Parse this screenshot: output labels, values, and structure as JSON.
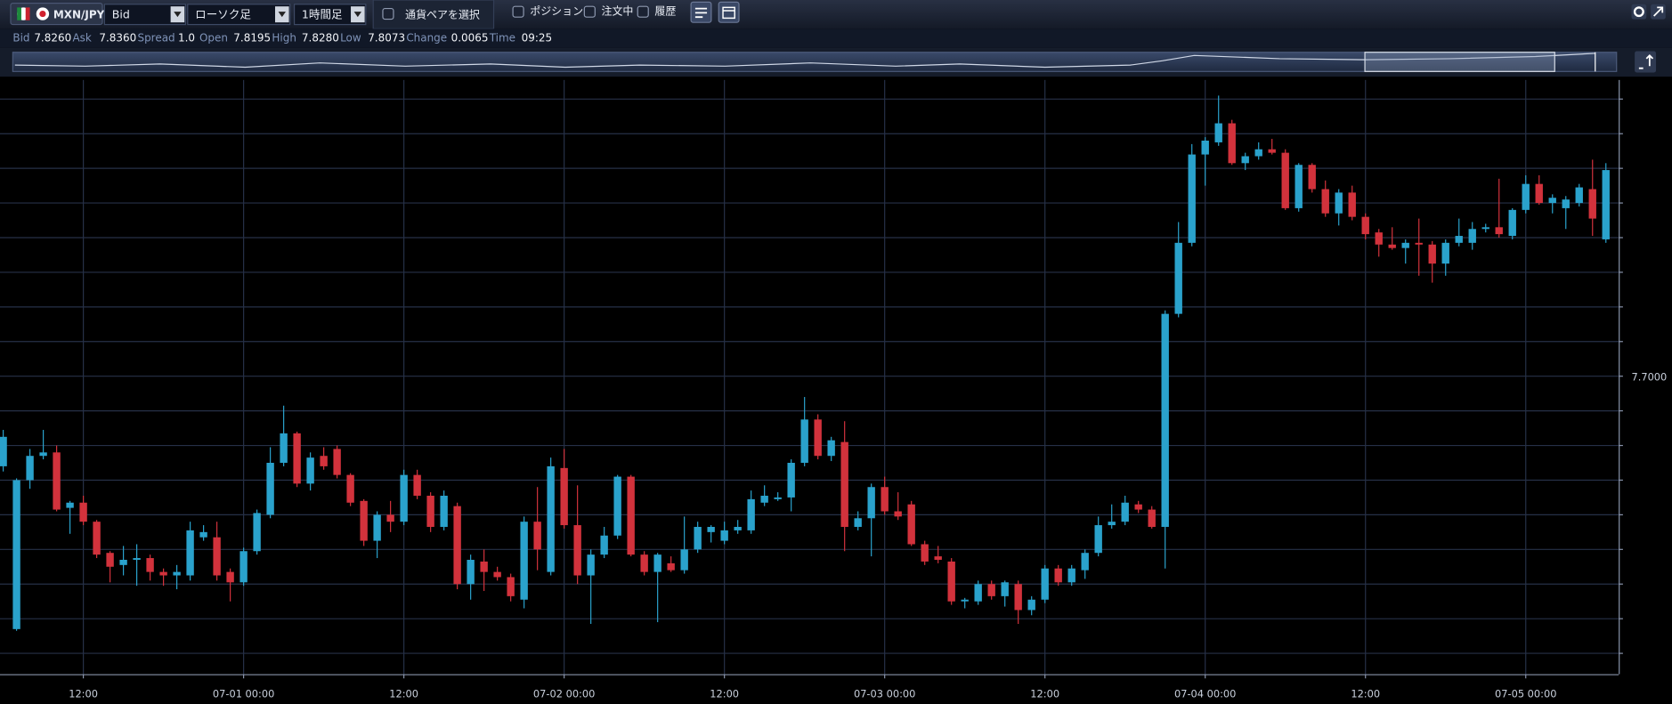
{
  "toolbar": {
    "pair": "MXN/JPY",
    "price_type": "Bid",
    "chart_type": "ローソク足",
    "period": "1時間足",
    "select_pair": "通貨ペアを選択",
    "positions": "ポジション",
    "orders": "注文中",
    "history": "履歴"
  },
  "quote": [
    {
      "label": "Bid",
      "value": "7.8260"
    },
    {
      "label": "Ask",
      "value": "7.8360"
    },
    {
      "label": "Spread",
      "value": "1.0"
    },
    {
      "label": "Open",
      "value": "7.8195"
    },
    {
      "label": "High",
      "value": "7.8280"
    },
    {
      "label": "Low",
      "value": "7.8073"
    },
    {
      "label": "Change",
      "value": "0.0065"
    },
    {
      "label": "Time",
      "value": "09:25"
    }
  ],
  "chart_data": {
    "type": "candlestick",
    "up_color": "#2aa2cc",
    "down_color": "#d2323c",
    "grid": true,
    "grid_color": "#263047",
    "ylim": [
      7.528,
      7.871
    ],
    "yticks": [
      {
        "value": 7.54,
        "label": null
      },
      {
        "value": 7.56,
        "label": null
      },
      {
        "value": 7.58,
        "label": null
      },
      {
        "value": 7.6,
        "label": null
      },
      {
        "value": 7.62,
        "label": null
      },
      {
        "value": 7.64,
        "label": null
      },
      {
        "value": 7.66,
        "label": null
      },
      {
        "value": 7.68,
        "label": null
      },
      {
        "value": 7.7,
        "label": "7.7000"
      },
      {
        "value": 7.72,
        "label": null
      },
      {
        "value": 7.74,
        "label": null
      },
      {
        "value": 7.76,
        "label": null
      },
      {
        "value": 7.78,
        "label": null
      },
      {
        "value": 7.8,
        "label": null
      },
      {
        "value": 7.82,
        "label": null
      },
      {
        "value": 7.84,
        "label": null
      },
      {
        "value": 7.86,
        "label": null
      }
    ],
    "x": [
      null,
      null,
      null,
      null,
      null,
      null,
      "12:00",
      null,
      null,
      null,
      null,
      null,
      null,
      null,
      null,
      null,
      null,
      null,
      "07-01 00:00",
      null,
      null,
      null,
      null,
      null,
      null,
      null,
      null,
      null,
      null,
      null,
      "12:00",
      null,
      null,
      null,
      null,
      null,
      null,
      null,
      null,
      null,
      null,
      null,
      "07-02 00:00",
      null,
      null,
      null,
      null,
      null,
      null,
      null,
      null,
      null,
      null,
      null,
      "12:00",
      null,
      null,
      null,
      null,
      null,
      null,
      null,
      null,
      null,
      null,
      null,
      "07-03 00:00",
      null,
      null,
      null,
      null,
      null,
      null,
      null,
      null,
      null,
      null,
      null,
      "12:00",
      null,
      null,
      null,
      null,
      null,
      null,
      null,
      null,
      null,
      null,
      null,
      "07-04 00:00",
      null,
      null,
      null,
      null,
      null,
      null,
      null,
      null,
      null,
      null,
      null,
      "12:00",
      null,
      null,
      null,
      null,
      null,
      null,
      null,
      null,
      null,
      null,
      null,
      "07-05 00:00",
      null,
      null,
      null,
      null,
      null,
      null
    ],
    "open": [
      7.648,
      7.554,
      7.64,
      7.654,
      7.656,
      7.624,
      7.627,
      7.616,
      7.598,
      7.591,
      7.594,
      7.595,
      7.587,
      7.585,
      7.585,
      7.607,
      7.607,
      7.587,
      7.581,
      7.599,
      7.62,
      7.65,
      7.667,
      7.638,
      7.654,
      7.658,
      7.643,
      7.628,
      7.605,
      7.62,
      7.616,
      7.643,
      7.631,
      7.613,
      7.625,
      7.58,
      7.593,
      7.587,
      7.584,
      7.571,
      7.616,
      7.587,
      7.647,
      7.614,
      7.585,
      7.597,
      7.608,
      7.642,
      7.597,
      7.587,
      7.592,
      7.588,
      7.6,
      7.61,
      7.605,
      7.611,
      7.611,
      7.627,
      7.629,
      7.63,
      7.65,
      7.675,
      7.654,
      7.662,
      7.613,
      7.618,
      7.636,
      7.622,
      7.626,
      7.603,
      7.596,
      7.593,
      7.57,
      7.57,
      7.58,
      7.573,
      7.58,
      7.565,
      7.571,
      7.589,
      7.581,
      7.588,
      7.598,
      7.614,
      7.616,
      7.626,
      7.623,
      7.613,
      7.736,
      7.777,
      7.828,
      7.835,
      7.846,
      7.823,
      7.827,
      7.831,
      7.829,
      7.797,
      7.822,
      7.808,
      7.794,
      7.806,
      7.792,
      7.783,
      7.776,
      7.774,
      7.777,
      7.776,
      7.765,
      7.777,
      7.777,
      7.785,
      7.786,
      7.781,
      7.796,
      7.811,
      7.8,
      7.797,
      7.8,
      7.808,
      7.779
    ],
    "high": [
      7.669,
      7.641,
      7.658,
      7.669,
      7.66,
      7.628,
      7.631,
      7.617,
      7.599,
      7.602,
      7.603,
      7.597,
      7.589,
      7.591,
      7.616,
      7.614,
      7.616,
      7.589,
      7.601,
      7.623,
      7.659,
      7.683,
      7.668,
      7.656,
      7.659,
      7.66,
      7.644,
      7.629,
      7.622,
      7.628,
      7.646,
      7.646,
      7.633,
      7.634,
      7.627,
      7.597,
      7.6,
      7.59,
      7.586,
      7.619,
      7.636,
      7.653,
      7.658,
      7.637,
      7.6,
      7.613,
      7.643,
      7.643,
      7.599,
      7.598,
      7.596,
      7.619,
      7.616,
      7.614,
      7.616,
      7.617,
      7.634,
      7.637,
      7.633,
      7.652,
      7.688,
      7.678,
      7.665,
      7.674,
      7.622,
      7.638,
      7.642,
      7.633,
      7.628,
      7.605,
      7.602,
      7.595,
      7.572,
      7.582,
      7.582,
      7.582,
      7.582,
      7.573,
      7.591,
      7.591,
      7.591,
      7.6,
      7.619,
      7.626,
      7.631,
      7.628,
      7.625,
      7.738,
      7.789,
      7.834,
      7.838,
      7.862,
      7.848,
      7.829,
      7.835,
      7.837,
      7.831,
      7.823,
      7.823,
      7.813,
      7.808,
      7.81,
      7.794,
      7.785,
      7.786,
      7.779,
      7.791,
      7.778,
      7.779,
      7.791,
      7.789,
      7.788,
      7.814,
      7.797,
      7.816,
      7.816,
      7.805,
      7.804,
      7.811,
      7.825,
      7.823
    ],
    "low": [
      7.645,
      7.553,
      7.635,
      7.652,
      7.622,
      7.609,
      7.614,
      7.595,
      7.581,
      7.585,
      7.579,
      7.582,
      7.579,
      7.577,
      7.582,
      7.605,
      7.582,
      7.57,
      7.579,
      7.597,
      7.618,
      7.648,
      7.636,
      7.634,
      7.646,
      7.641,
      7.625,
      7.602,
      7.595,
      7.61,
      7.614,
      7.629,
      7.61,
      7.611,
      7.577,
      7.571,
      7.576,
      7.582,
      7.57,
      7.566,
      7.588,
      7.585,
      7.612,
      7.58,
      7.557,
      7.595,
      7.606,
      7.596,
      7.585,
      7.558,
      7.587,
      7.586,
      7.598,
      7.604,
      7.603,
      7.609,
      7.609,
      7.625,
      7.628,
      7.622,
      7.648,
      7.652,
      7.651,
      7.599,
      7.611,
      7.596,
      7.62,
      7.617,
      7.602,
      7.591,
      7.592,
      7.568,
      7.566,
      7.568,
      7.571,
      7.567,
      7.557,
      7.562,
      7.569,
      7.579,
      7.579,
      7.583,
      7.596,
      7.612,
      7.614,
      7.621,
      7.612,
      7.589,
      7.734,
      7.775,
      7.81,
      7.833,
      7.822,
      7.819,
      7.825,
      7.828,
      7.796,
      7.795,
      7.806,
      7.792,
      7.787,
      7.79,
      7.779,
      7.769,
      7.773,
      7.765,
      7.758,
      7.754,
      7.758,
      7.775,
      7.773,
      7.783,
      7.78,
      7.779,
      7.794,
      7.799,
      7.794,
      7.785,
      7.798,
      7.781,
      7.777
    ],
    "close": [
      7.665,
      7.64,
      7.654,
      7.656,
      7.623,
      7.627,
      7.616,
      7.597,
      7.59,
      7.594,
      7.595,
      7.587,
      7.585,
      7.587,
      7.611,
      7.61,
      7.585,
      7.581,
      7.599,
      7.621,
      7.65,
      7.667,
      7.638,
      7.653,
      7.648,
      7.643,
      7.627,
      7.605,
      7.62,
      7.616,
      7.643,
      7.631,
      7.613,
      7.631,
      7.58,
      7.594,
      7.587,
      7.584,
      7.573,
      7.616,
      7.6,
      7.648,
      7.614,
      7.585,
      7.597,
      7.608,
      7.642,
      7.597,
      7.587,
      7.597,
      7.588,
      7.6,
      7.613,
      7.613,
      7.611,
      7.613,
      7.629,
      7.631,
      7.63,
      7.65,
      7.675,
      7.654,
      7.663,
      7.613,
      7.618,
      7.636,
      7.622,
      7.619,
      7.603,
      7.593,
      7.594,
      7.57,
      7.571,
      7.58,
      7.573,
      7.581,
      7.565,
      7.571,
      7.589,
      7.581,
      7.589,
      7.598,
      7.614,
      7.616,
      7.627,
      7.623,
      7.613,
      7.736,
      7.777,
      7.828,
      7.836,
      7.846,
      7.823,
      7.827,
      7.831,
      7.829,
      7.797,
      7.822,
      7.808,
      7.794,
      7.806,
      7.792,
      7.782,
      7.776,
      7.774,
      7.777,
      7.776,
      7.765,
      7.777,
      7.781,
      7.785,
      7.786,
      7.782,
      7.796,
      7.811,
      7.8,
      7.803,
      7.802,
      7.809,
      7.791,
      7.819
    ]
  }
}
